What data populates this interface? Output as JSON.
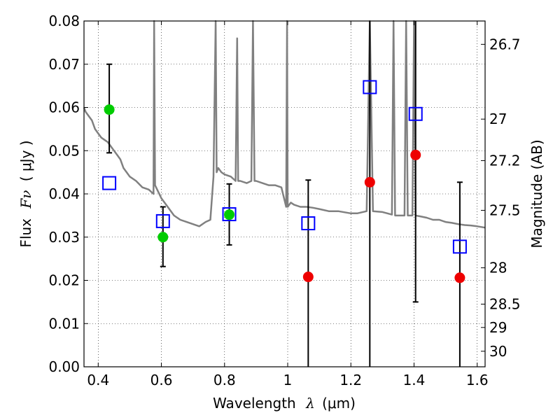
{
  "chart_data": {
    "type": "scatter",
    "xlabel": {
      "pre": "Wavelength",
      "sym": "λ",
      "post": "(μm)"
    },
    "ylabel": {
      "pre": "Flux",
      "sym": "Fν",
      "post": "( μJy )"
    },
    "y2label": "Magnitude (AB)",
    "xlim": [
      0.355,
      1.625
    ],
    "ylim": [
      0.0,
      0.08
    ],
    "xticks": [
      0.4,
      0.6,
      0.8,
      1.0,
      1.2,
      1.4,
      1.6
    ],
    "xtick_labels": [
      "0.4",
      "0.6",
      "0.8",
      "1",
      "1.2",
      "1.4",
      "1.6"
    ],
    "yticks": [
      0.0,
      0.01,
      0.02,
      0.03,
      0.04,
      0.05,
      0.06,
      0.07,
      0.08
    ],
    "ytick_labels": [
      "0.00",
      "0.01",
      "0.02",
      "0.03",
      "0.04",
      "0.05",
      "0.06",
      "0.07",
      "0.08"
    ],
    "magnitude_ticks": [
      {
        "label": "26.7",
        "flux": 0.0746
      },
      {
        "label": "27",
        "flux": 0.0573
      },
      {
        "label": "27.2",
        "flux": 0.0477
      },
      {
        "label": "27.5",
        "flux": 0.0362
      },
      {
        "label": "28",
        "flux": 0.0229
      },
      {
        "label": "28.5",
        "flux": 0.0145
      },
      {
        "label": "29",
        "flux": 0.0091
      },
      {
        "label": "30",
        "flux": 0.0036
      }
    ],
    "grid": true,
    "colors": {
      "model": "#808080",
      "green": "#00cc00",
      "red": "#ee0000",
      "square": "#0000ff",
      "errorbar": "#000000"
    },
    "model_spectrum": {
      "x": [
        0.355,
        0.36,
        0.37,
        0.38,
        0.39,
        0.4,
        0.41,
        0.42,
        0.43,
        0.44,
        0.45,
        0.46,
        0.47,
        0.48,
        0.49,
        0.5,
        0.52,
        0.54,
        0.56,
        0.575,
        0.577,
        0.58,
        0.6,
        0.62,
        0.64,
        0.66,
        0.68,
        0.7,
        0.72,
        0.74,
        0.755,
        0.765,
        0.772,
        0.775,
        0.78,
        0.79,
        0.8,
        0.82,
        0.835,
        0.84,
        0.843,
        0.85,
        0.87,
        0.885,
        0.89,
        0.895,
        0.9,
        0.92,
        0.94,
        0.96,
        0.98,
        0.995,
        0.998,
        1.0,
        1.01,
        1.02,
        1.04,
        1.06,
        1.08,
        1.1,
        1.13,
        1.16,
        1.2,
        1.22,
        1.25,
        1.26,
        1.27,
        1.3,
        1.33,
        1.335,
        1.34,
        1.36,
        1.37,
        1.375,
        1.38,
        1.395,
        1.4,
        1.405,
        1.42,
        1.44,
        1.46,
        1.48,
        1.5,
        1.52,
        1.54,
        1.56,
        1.58,
        1.6,
        1.625
      ],
      "y": [
        0.06,
        0.059,
        0.058,
        0.057,
        0.055,
        0.054,
        0.053,
        0.0525,
        0.052,
        0.051,
        0.05,
        0.049,
        0.048,
        0.046,
        0.045,
        0.044,
        0.043,
        0.0415,
        0.041,
        0.04,
        0.08,
        0.042,
        0.039,
        0.037,
        0.035,
        0.034,
        0.0335,
        0.033,
        0.0325,
        0.0335,
        0.034,
        0.044,
        0.08,
        0.045,
        0.046,
        0.045,
        0.0445,
        0.044,
        0.043,
        0.076,
        0.043,
        0.043,
        0.0425,
        0.043,
        0.08,
        0.043,
        0.043,
        0.0425,
        0.042,
        0.042,
        0.0415,
        0.037,
        0.08,
        0.037,
        0.038,
        0.0375,
        0.037,
        0.037,
        0.0368,
        0.0365,
        0.036,
        0.036,
        0.0355,
        0.0355,
        0.036,
        0.08,
        0.036,
        0.0358,
        0.0352,
        0.08,
        0.035,
        0.035,
        0.035,
        0.08,
        0.035,
        0.035,
        0.08,
        0.035,
        0.0348,
        0.0345,
        0.034,
        0.034,
        0.0335,
        0.0333,
        0.033,
        0.0328,
        0.0327,
        0.0325,
        0.0322
      ]
    },
    "green_points": [
      {
        "x": 0.435,
        "y": 0.0595,
        "yerr_low": 0.0495,
        "yerr_high": 0.07
      },
      {
        "x": 0.605,
        "y": 0.03,
        "yerr_low": 0.0232,
        "yerr_high": 0.037
      },
      {
        "x": 0.815,
        "y": 0.0352,
        "yerr_low": 0.0282,
        "yerr_high": 0.0423
      }
    ],
    "red_points": [
      {
        "x": 1.065,
        "y": 0.0208,
        "yerr_low": 0.0,
        "yerr_high": 0.0432
      },
      {
        "x": 1.26,
        "y": 0.0427,
        "yerr_low": 0.0,
        "yerr_high": 0.08
      },
      {
        "x": 1.405,
        "y": 0.049,
        "yerr_low": 0.015,
        "yerr_high": 0.08
      },
      {
        "x": 1.545,
        "y": 0.0206,
        "yerr_low": 0.0,
        "yerr_high": 0.0427
      }
    ],
    "model_squares": [
      {
        "x": 0.435,
        "y": 0.0425
      },
      {
        "x": 0.605,
        "y": 0.0337
      },
      {
        "x": 0.815,
        "y": 0.0353
      },
      {
        "x": 1.065,
        "y": 0.0332
      },
      {
        "x": 1.26,
        "y": 0.0647
      },
      {
        "x": 1.405,
        "y": 0.0585
      },
      {
        "x": 1.545,
        "y": 0.0278
      }
    ]
  }
}
